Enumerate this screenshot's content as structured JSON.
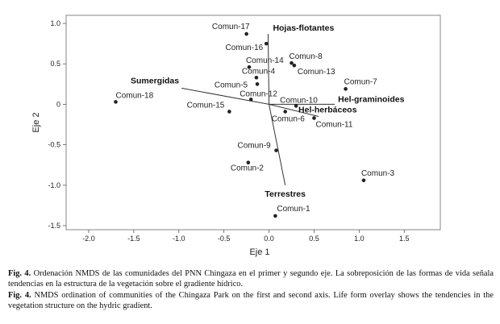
{
  "chart_data": {
    "type": "scatter",
    "xlabel": "Eje 1",
    "ylabel": "Eje 2",
    "xlim": [
      -2.25,
      1.9
    ],
    "ylim": [
      -1.55,
      1.1
    ],
    "xticks": [
      "-2.0",
      "-1.5",
      "-1.0",
      "-0.5",
      "0.0",
      "0.5",
      "1.0",
      "1.5"
    ],
    "xtick_values": [
      -2.0,
      -1.5,
      -1.0,
      -0.5,
      0.0,
      0.5,
      1.0,
      1.5
    ],
    "yticks": [
      "1.0",
      "0.5",
      "0",
      "-0.5",
      "-1.0",
      "-1.5"
    ],
    "ytick_values": [
      1.0,
      0.5,
      0.0,
      -0.5,
      -1.0,
      -1.5
    ],
    "points": [
      {
        "label": "Comun-1",
        "x": 0.07,
        "y": -1.38
      },
      {
        "label": "Comun-2",
        "x": -0.23,
        "y": -0.72
      },
      {
        "label": "Comun-3",
        "x": 1.05,
        "y": -0.94
      },
      {
        "label": "Comun-4",
        "x": -0.14,
        "y": 0.33
      },
      {
        "label": "Comun-5",
        "x": -0.13,
        "y": 0.25
      },
      {
        "label": "Comun-6",
        "x": 0.18,
        "y": -0.09
      },
      {
        "label": "Comun-7",
        "x": 0.85,
        "y": 0.19
      },
      {
        "label": "Comun-8",
        "x": 0.25,
        "y": 0.51
      },
      {
        "label": "Comun-9",
        "x": 0.08,
        "y": -0.57
      },
      {
        "label": "Comun-10",
        "x": 0.3,
        "y": -0.02
      },
      {
        "label": "Comun-11",
        "x": 0.5,
        "y": -0.17
      },
      {
        "label": "Comun-12",
        "x": -0.2,
        "y": 0.06
      },
      {
        "label": "Comun-13",
        "x": 0.28,
        "y": 0.48
      },
      {
        "label": "Comun-14",
        "x": -0.22,
        "y": 0.46
      },
      {
        "label": "Comun-15",
        "x": -0.44,
        "y": -0.09
      },
      {
        "label": "Comun-16",
        "x": -0.03,
        "y": 0.75
      },
      {
        "label": "Comun-17",
        "x": -0.25,
        "y": 0.87
      },
      {
        "label": "Comun-18",
        "x": -1.7,
        "y": 0.03
      }
    ],
    "vectors": [
      {
        "label": "Hojas-flotantes",
        "x": -0.01,
        "y": 0.87
      },
      {
        "label": "Sumergidas",
        "x": -0.97,
        "y": 0.2
      },
      {
        "label": "Hel-graminoides",
        "x": 0.73,
        "y": 0.0
      },
      {
        "label": "Hel-herbáceos",
        "x": 0.55,
        "y": -0.15
      },
      {
        "label": "Terrestres",
        "x": 0.18,
        "y": -1.0
      }
    ],
    "vector_origin": {
      "x": 0.0,
      "y": 0.0
    },
    "grid": false,
    "legend": "none",
    "colors": {
      "points": "#222222",
      "lines": "#333333",
      "axes": "#555555"
    }
  },
  "caption": {
    "es_label": "Fig. 4.",
    "es_text": "Ordenación NMDS de las comunidades del PNN Chingaza en el primer y segundo eje. La sobreposición de las formas de vida señala tendencias en la estructura de la vegetación sobre el gradiente hídrico.",
    "en_label": "Fig. 4.",
    "en_text": "NMDS ordination of communities of the Chingaza Park on the first and second axis. Life form overlay shows the tendencies in the vegetation structure on the hydric gradient."
  }
}
